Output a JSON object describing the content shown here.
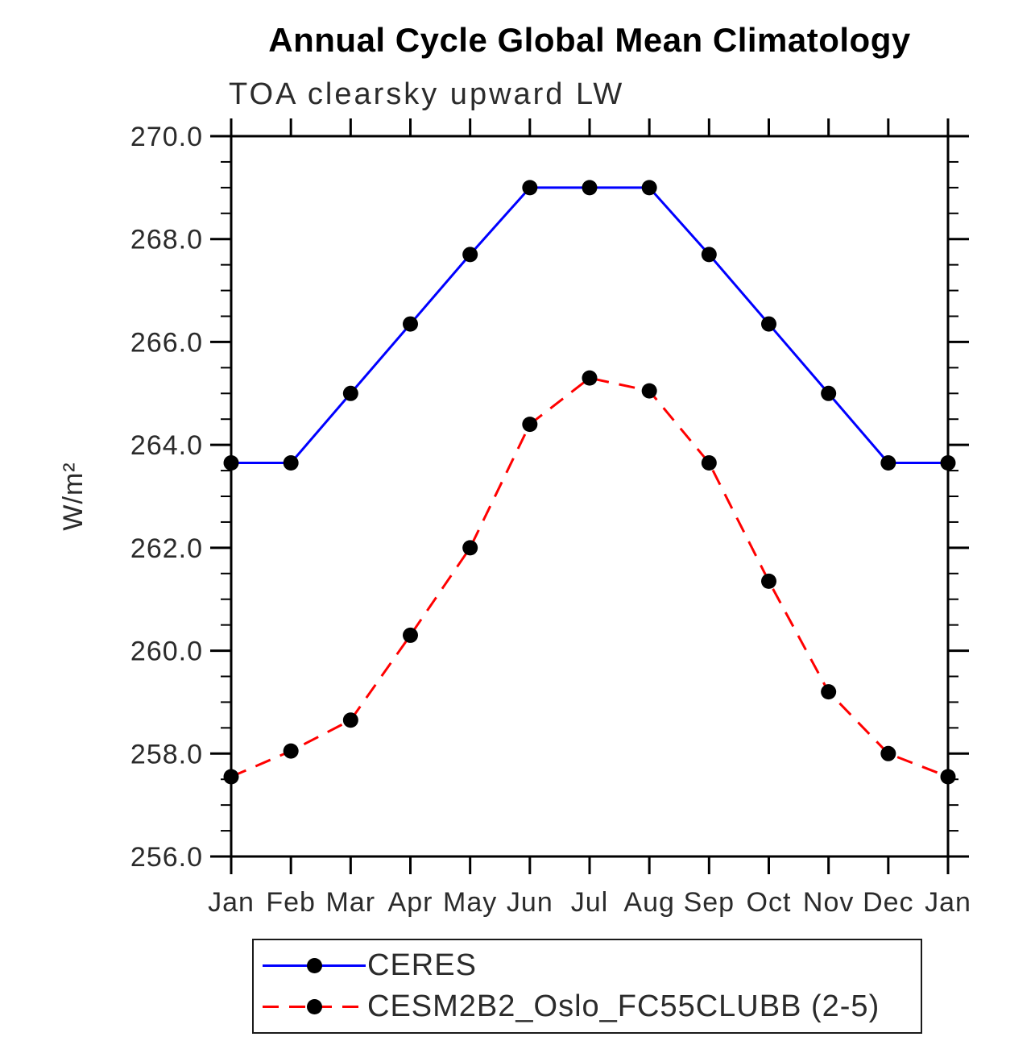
{
  "page": {
    "background": "#ffffff",
    "text_color": "#2b2b2b",
    "axis_color": "#000000"
  },
  "chart_data": {
    "type": "line",
    "title": "Annual Cycle Global Mean Climatology",
    "subtitle": "TOA clearsky upward LW",
    "xlabel": "",
    "ylabel": "W/m²",
    "ylim": [
      256.0,
      270.0
    ],
    "y_major_step": 2.0,
    "y_minor_step": 0.5,
    "y_tick_labels": [
      "256.0",
      "258.0",
      "260.0",
      "262.0",
      "264.0",
      "266.0",
      "268.0",
      "270.0"
    ],
    "x_tick_labels": [
      "Jan",
      "Feb",
      "Mar",
      "Apr",
      "May",
      "Jun",
      "Jul",
      "Aug",
      "Sep",
      "Oct",
      "Nov",
      "Dec",
      "Jan"
    ],
    "grid": false,
    "legend_position": "bottom",
    "series": [
      {
        "name": "CERES",
        "color": "#0000ff",
        "style": "solid",
        "marker": "circle",
        "marker_color": "#000000",
        "values": [
          263.65,
          263.65,
          265.0,
          266.35,
          267.7,
          269.0,
          269.0,
          269.0,
          267.7,
          266.35,
          265.0,
          263.65,
          263.65
        ]
      },
      {
        "name": "CESM2B2_Oslo_FC55CLUBB (2-5)",
        "color": "#ff0000",
        "style": "dashed",
        "marker": "circle",
        "marker_color": "#000000",
        "values": [
          257.55,
          258.05,
          258.65,
          260.3,
          262.0,
          264.4,
          265.3,
          265.05,
          263.65,
          261.35,
          259.2,
          258.0,
          257.55
        ]
      }
    ]
  }
}
